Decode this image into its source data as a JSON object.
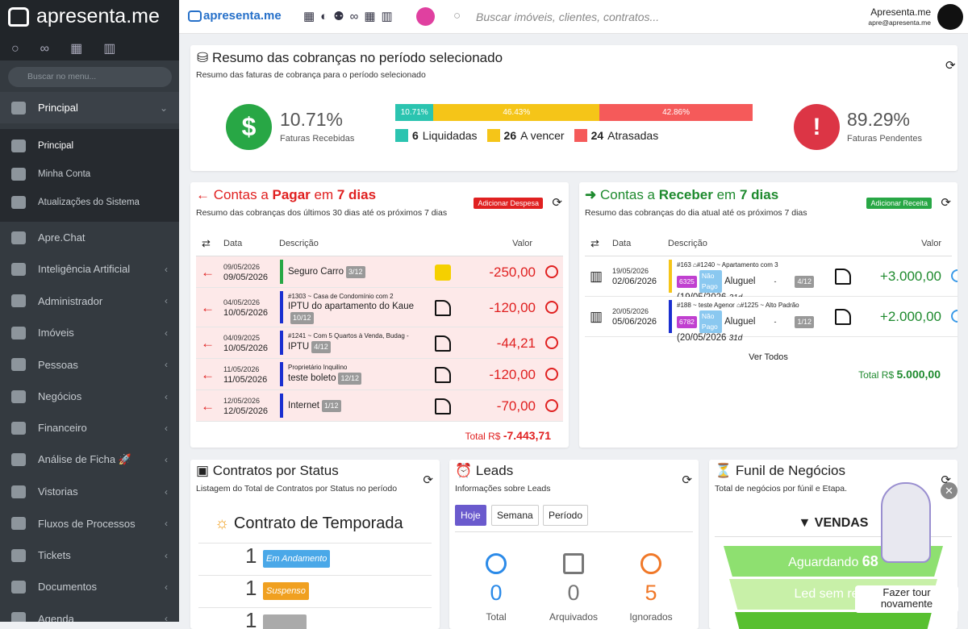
{
  "sidebar": {
    "brand": "apresenta.me",
    "search_placeholder": "Buscar no menu...",
    "section": "Principal",
    "submenu": [
      "Principal",
      "Minha Conta",
      "Atualizações do Sistema"
    ],
    "menu": [
      "Apre.Chat",
      "Inteligência Artificial",
      "Administrador",
      "Imóveis",
      "Pessoas",
      "Negócios",
      "Financeiro",
      "Análise de Ficha 🚀",
      "Vistorias",
      "Fluxos de Processos",
      "Tickets",
      "Documentos",
      "Agenda"
    ]
  },
  "topbar": {
    "brand": "apresenta.me",
    "search_placeholder": "Buscar imóveis, clientes, contratos...",
    "user_name": "Apresenta.me",
    "user_email": "apre@apresenta.me"
  },
  "summary": {
    "title": "Resumo das cobranças no período selecionado",
    "subtitle": "Resumo das faturas de cobrança para o período selecionado",
    "received": "10.71%",
    "received_label": "Faturas Recebidas",
    "pending": "89.29%",
    "pending_label": "Faturas Pendentes",
    "segments": [
      {
        "value": 10.71,
        "label": "10.71%",
        "color": "#2bc4b0"
      },
      {
        "value": 46.43,
        "label": "46.43%",
        "color": "#f5c518"
      },
      {
        "value": 42.86,
        "label": "42.86%",
        "color": "#f55a5a"
      }
    ],
    "legend": [
      {
        "count": "6",
        "label": "Liquidadas"
      },
      {
        "count": "26",
        "label": "A vencer"
      },
      {
        "count": "24",
        "label": "Atrasadas"
      }
    ]
  },
  "payables": {
    "title": [
      "Contas a",
      "Pagar",
      "em",
      "7 dias"
    ],
    "button": "Adicionar Despesa",
    "subtitle": "Resumo das cobranças dos últimos 30 dias até os próximos 7 dias",
    "headers": [
      "Data",
      "Descrição",
      "Valor"
    ],
    "rows": [
      {
        "date1": "09/05/2026",
        "date2": "09/05/2026",
        "meta": null,
        "desc": "Seguro Carro",
        "tag": "3/12",
        "amount": "-250,00",
        "color": "#28a745"
      },
      {
        "date1": "04/05/2026",
        "date2": "10/05/2026",
        "meta": "#1303 ~ Casa de Condomínio com 2",
        "desc": "IPTU do apartamento do Kaue",
        "tag": "10/12",
        "amount": "-120,00",
        "color": "#1a2fd0"
      },
      {
        "date1": "04/09/2025",
        "date2": "10/05/2026",
        "meta": "#1241 ~ Com 5 Quartos à Venda, Budag -",
        "desc": "IPTU",
        "tag": "4/12",
        "amount": "-44,21",
        "color": "#1a2fd0"
      },
      {
        "date1": "11/05/2026",
        "date2": "11/05/2026",
        "meta": "Proprietário  Inquilino",
        "desc": "teste boleto",
        "tag": "12/12",
        "amount": "-120,00",
        "color": "#1a2fd0"
      },
      {
        "date1": "12/05/2026",
        "date2": "12/05/2026",
        "meta": null,
        "desc": "Internet",
        "tag": "1/12",
        "amount": "-70,00",
        "color": "#1a2fd0"
      }
    ],
    "total_label": "Total R$",
    "total": "-7.443,71"
  },
  "receivables": {
    "title": [
      "Contas a",
      "Receber",
      "em",
      "7 dias"
    ],
    "button": "Adicionar Receita",
    "subtitle": "Resumo das cobranças do dia atual até os próximos 7 dias",
    "headers": [
      "Data",
      "Descrição",
      "Valor"
    ],
    "rows": [
      {
        "date1": "19/05/2026",
        "date2": "02/06/2026",
        "ref": "#163",
        "meta": "#1240 ~ Apartamento com 3",
        "code": "6325",
        "status": "Não Pago",
        "desc": "Aluguel",
        "sep": "-",
        "tag": "4/12",
        "due": "(19/05/2026",
        "days": "31d",
        "amount": "+3.000,00",
        "color": "#f5c518"
      },
      {
        "date1": "20/05/2026",
        "date2": "05/06/2026",
        "ref": "#188 ~ teste Agenor",
        "meta": "#1225 ~ Alto Padrão",
        "code": "6782",
        "status": "Não Pago",
        "desc": "Aluguel",
        "sep": "-",
        "tag": "1/12",
        "due": "(20/05/2026",
        "days": "31d",
        "amount": "+2.000,00",
        "color": "#1a2fd0"
      }
    ],
    "see_all": "Ver Todos",
    "total_label": "Total R$",
    "total": "5.000,00"
  },
  "contracts": {
    "title": "Contratos por Status",
    "subtitle": "Listagem do Total de Contratos por Status no período",
    "group": "Contrato de Temporada",
    "rows": [
      {
        "count": "1",
        "status": "Em Andamento",
        "color": "#4aa8e8"
      },
      {
        "count": "1",
        "status": "Suspenso",
        "color": "#f0a020"
      },
      {
        "count": "1",
        "status": null,
        "color": "#aaaaaa"
      }
    ]
  },
  "leads": {
    "title": "Leads",
    "subtitle": "Informações sobre Leads",
    "tabs": [
      "Hoje",
      "Semana",
      "Período"
    ],
    "stats": [
      {
        "count": "0",
        "label": "Total"
      },
      {
        "count": "0",
        "label": "Arquivados"
      },
      {
        "count": "5",
        "label": "Ignorados"
      }
    ]
  },
  "funnel": {
    "title": "Funil de Negócios",
    "subtitle": "Total de negócios por fúnil e Etapa.",
    "group": "VENDAS",
    "stages": [
      {
        "label": "Aguardando",
        "count": "68"
      },
      {
        "label": "Led sem resp",
        "count": null
      }
    ]
  },
  "tour": "Fazer tour novamente"
}
